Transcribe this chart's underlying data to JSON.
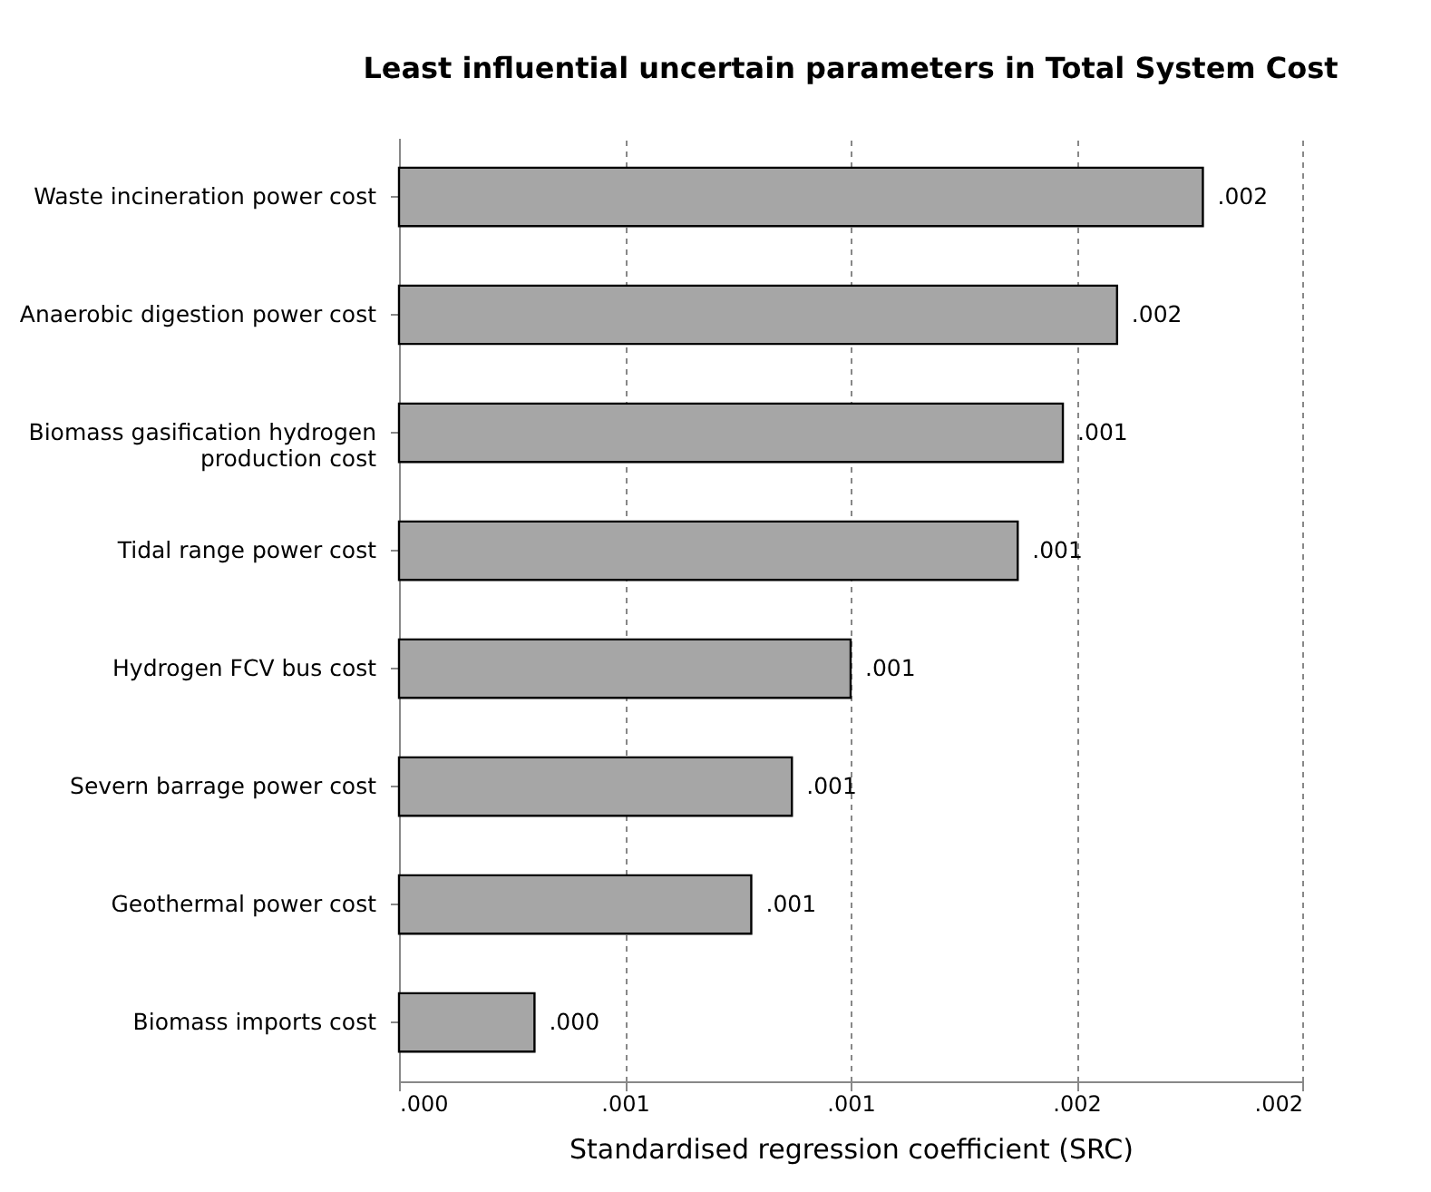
{
  "chart_data": {
    "type": "bar",
    "orientation": "horizontal",
    "title": "Least influential uncertain parameters in Total System Cost",
    "xlabel": "Standardised regression coefficient (SRC)",
    "categories": [
      "Waste incineration power cost",
      "Anaerobic digestion power cost",
      "Biomass gasification hydrogen production cost",
      "Tidal range power cost",
      "Hydrogen FCV bus cost",
      "Severn barrage power cost",
      "Geothermal power cost",
      "Biomass imports cost"
    ],
    "values": [
      0.00178,
      0.00159,
      0.00147,
      0.00137,
      0.001,
      0.00087,
      0.00078,
      0.0003
    ],
    "value_labels": [
      ".002",
      ".002",
      ".001",
      ".001",
      ".001",
      ".001",
      ".001",
      ".000"
    ],
    "color": "#a6a6a6",
    "xlim": [
      0,
      0.002
    ],
    "xticks": [
      {
        "value": 0,
        "label": ".000"
      },
      {
        "value": 0.0005,
        "label": ".001"
      },
      {
        "value": 0.001,
        "label": ".001"
      },
      {
        "value": 0.0015,
        "label": ".002"
      },
      {
        "value": 0.002,
        "label": ".002"
      }
    ],
    "grid": "x"
  }
}
